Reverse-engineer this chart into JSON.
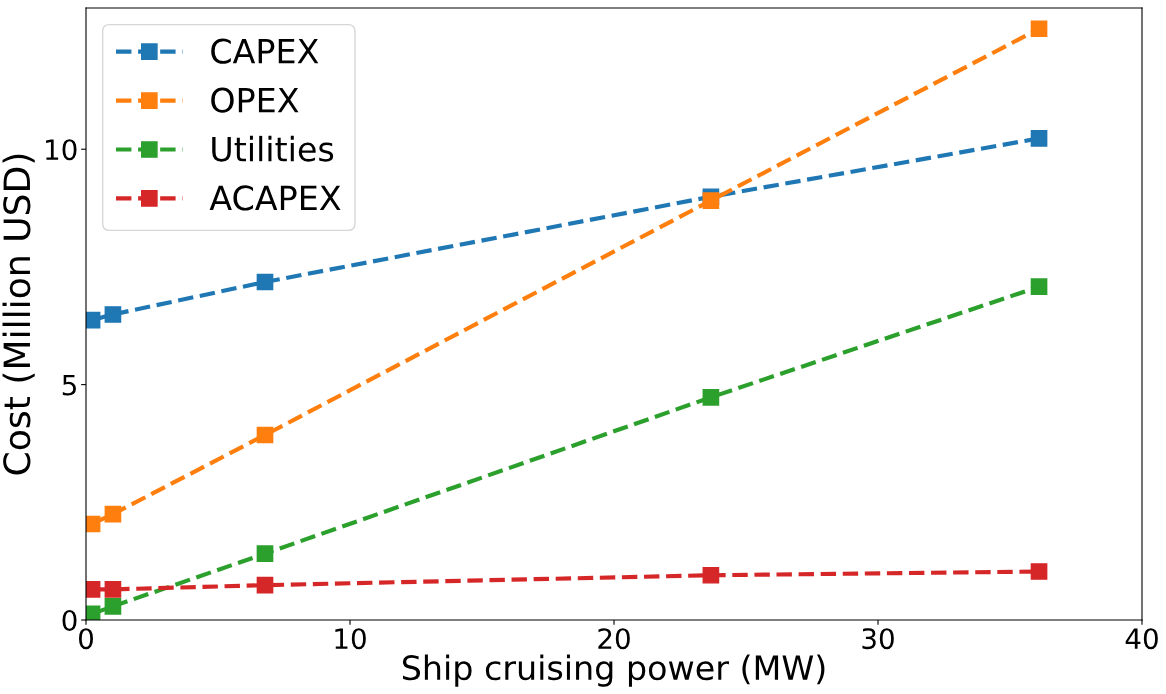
{
  "chart_data": {
    "type": "line",
    "xlabel": "Ship cruising power (MW)",
    "ylabel": "Cost (Million USD)",
    "x": [
      0.23,
      1.02,
      6.78,
      23.67,
      36.1
    ],
    "series": [
      {
        "name": "CAPEX",
        "color": "#1f77b4",
        "values": [
          6.37,
          6.49,
          7.18,
          8.99,
          10.23
        ]
      },
      {
        "name": "OPEX",
        "color": "#ff7f0e",
        "values": [
          2.04,
          2.25,
          3.93,
          8.91,
          12.56
        ]
      },
      {
        "name": "Utilities",
        "color": "#2ca02c",
        "values": [
          0.13,
          0.29,
          1.41,
          4.73,
          7.08
        ]
      },
      {
        "name": "ACAPEX",
        "color": "#d62728",
        "values": [
          0.65,
          0.65,
          0.74,
          0.95,
          1.03
        ]
      }
    ],
    "xlim": [
      0,
      40
    ],
    "xticks": [
      0,
      10,
      20,
      30,
      40
    ],
    "ylim": [
      0,
      13
    ],
    "yticks": [
      0,
      5,
      10
    ],
    "marker": "square",
    "line_style": "dashed",
    "legend": "top left",
    "grid": false
  }
}
